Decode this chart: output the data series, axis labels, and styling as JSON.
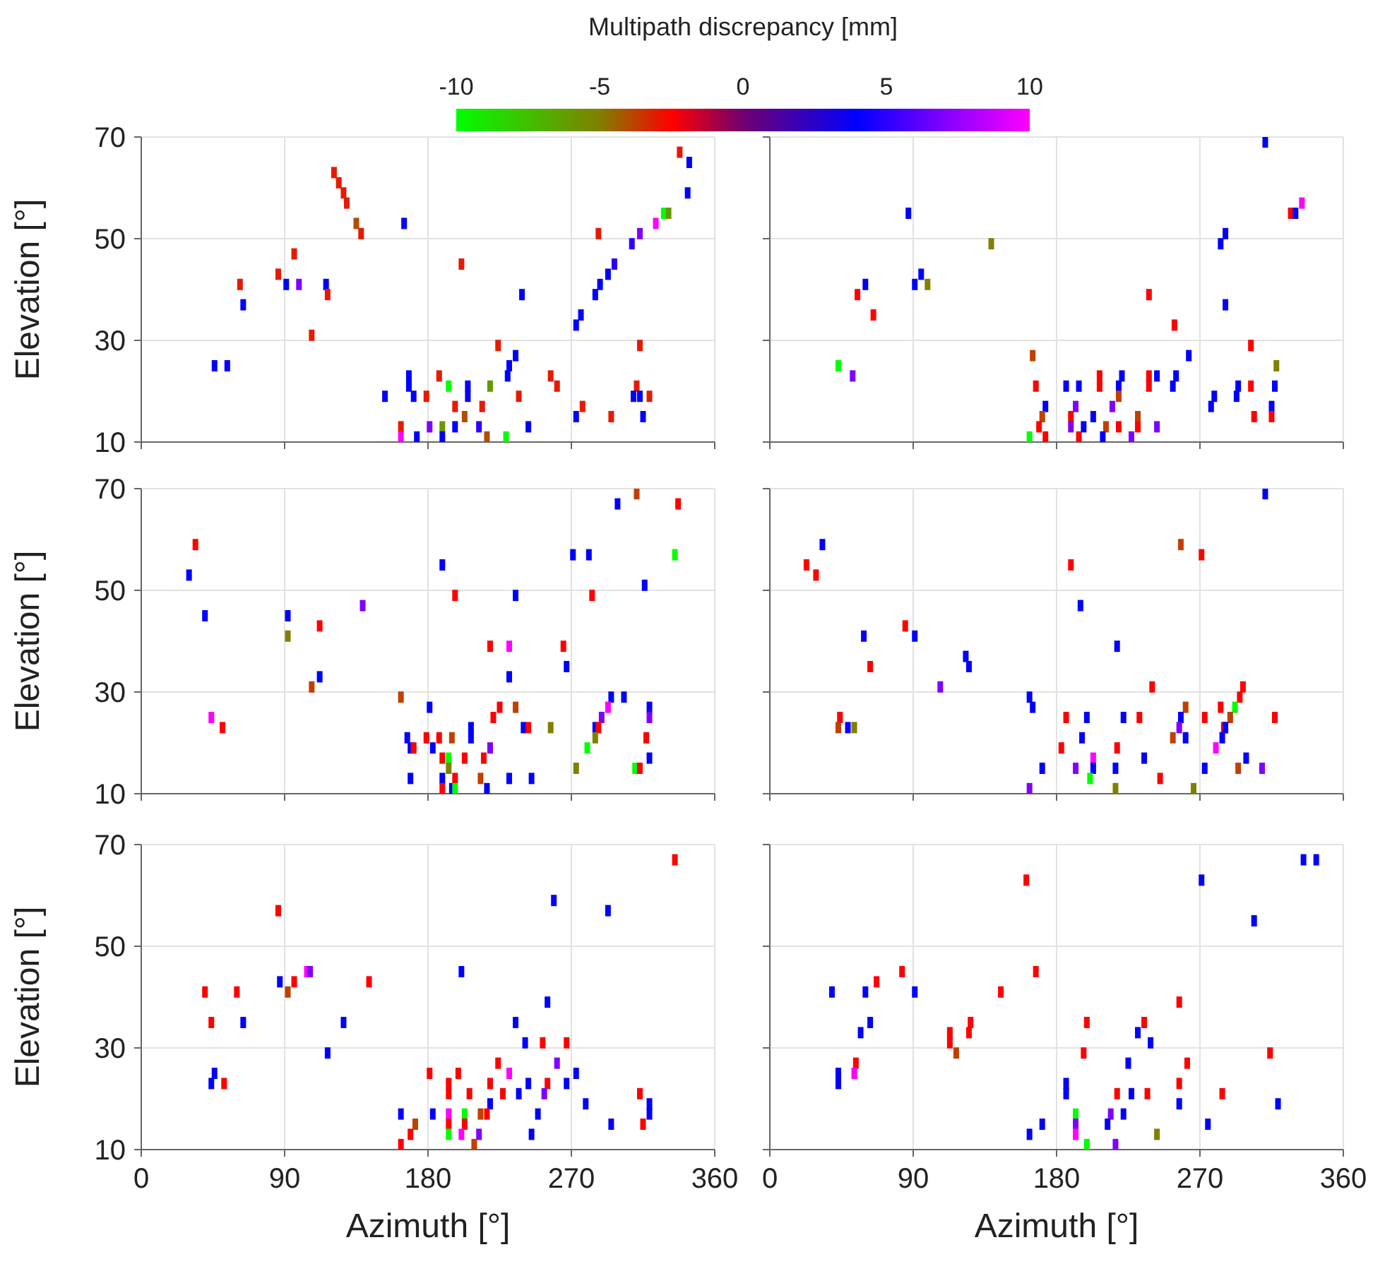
{
  "chart_data": [
    {
      "type": "scatter",
      "clabel": "Multipath discrepancy [mm]",
      "clim": [
        -10,
        10
      ],
      "cticks": [
        -10,
        -5,
        0,
        5,
        10
      ],
      "ylabel": "Elevation [°]",
      "xlim": [
        0,
        360
      ],
      "xticks": [
        0,
        90,
        180,
        270,
        360
      ],
      "ylim": [
        10,
        70
      ],
      "yticks": [
        10,
        30,
        50,
        70
      ],
      "grid": true,
      "marker": "square",
      "tick_labels": "y",
      "x": [
        338,
        344,
        343,
        328,
        331,
        323,
        313,
        287,
        308,
        297,
        293,
        288,
        285,
        276,
        273,
        313,
        224,
        235,
        231,
        230,
        257,
        261,
        311,
        309,
        313,
        319,
        277,
        273,
        295,
        315,
        168,
        168,
        187,
        193,
        205,
        205,
        219,
        153,
        171,
        179,
        237,
        197,
        214,
        203,
        163,
        163,
        173,
        181,
        189,
        189,
        197,
        212,
        217,
        229,
        243,
        121,
        124,
        127,
        129,
        135,
        138,
        165,
        96,
        86,
        62,
        91,
        99,
        116,
        117,
        64,
        107,
        201,
        239,
        46,
        54
      ],
      "values": [
        67,
        65,
        59,
        55,
        55,
        53,
        51,
        51,
        49,
        45,
        43,
        41,
        39,
        35,
        33,
        29,
        29,
        27,
        25,
        23,
        23,
        21,
        21,
        19,
        19,
        19,
        17,
        15,
        15,
        15,
        23,
        21,
        23,
        21,
        21,
        19,
        21,
        19,
        19,
        19,
        19,
        17,
        17,
        15,
        13,
        11,
        11,
        13,
        13,
        11,
        13,
        13,
        11,
        11,
        13,
        63,
        61,
        59,
        57,
        53,
        51,
        53,
        47,
        43,
        41,
        41,
        41,
        41,
        39,
        37,
        31,
        45,
        39,
        25,
        25
      ],
      "cvalues": [
        -3,
        4,
        4,
        -10,
        -6,
        10,
        7,
        -3,
        5,
        5,
        4,
        4,
        4,
        4,
        4,
        -3,
        -3,
        4,
        4,
        4,
        -3,
        -3,
        -3,
        4,
        4,
        -3,
        -3,
        4,
        -3,
        4,
        4,
        4,
        -3,
        -10,
        4,
        4,
        -6,
        4,
        4,
        -3,
        -3,
        -3,
        -3,
        -4,
        -3,
        10,
        4,
        7,
        -6,
        4,
        4,
        5,
        -4,
        -10,
        4,
        -3,
        -3,
        -3,
        -3,
        -4,
        -3,
        4,
        -3,
        -3,
        -3,
        4,
        7,
        4,
        -3,
        4,
        -3,
        -3,
        4,
        4,
        4
      ]
    },
    {
      "type": "scatter",
      "xlim": [
        0,
        360
      ],
      "xticks": [
        0,
        90,
        180,
        270,
        360
      ],
      "ylim": [
        10,
        70
      ],
      "yticks": [
        10,
        30,
        50,
        70
      ],
      "grid": true,
      "marker": "square",
      "tick_labels": false,
      "x": [
        311,
        334,
        327,
        330,
        286,
        283,
        286,
        87,
        139,
        95,
        91,
        99,
        60,
        55,
        65,
        238,
        254,
        302,
        263,
        318,
        43,
        52,
        165,
        167,
        173,
        171,
        169,
        163,
        173,
        186,
        194,
        207,
        207,
        221,
        219,
        219,
        238,
        238,
        243,
        255,
        253,
        192,
        215,
        189,
        203,
        189,
        197,
        211,
        219,
        231,
        231,
        243,
        194,
        209,
        227,
        279,
        277,
        294,
        293,
        302,
        317,
        315,
        304,
        315
      ],
      "values": [
        69,
        57,
        55,
        55,
        51,
        49,
        37,
        55,
        49,
        43,
        41,
        41,
        41,
        39,
        35,
        39,
        33,
        29,
        27,
        25,
        25,
        23,
        27,
        21,
        17,
        15,
        13,
        11,
        11,
        21,
        21,
        23,
        21,
        23,
        21,
        19,
        23,
        21,
        23,
        23,
        21,
        17,
        17,
        15,
        15,
        13,
        13,
        13,
        13,
        15,
        13,
        13,
        11,
        11,
        11,
        19,
        17,
        21,
        19,
        21,
        21,
        17,
        15,
        15
      ],
      "colors": [
        "#0000ff",
        "#ff00ff",
        "#ff0000",
        "#0000ff",
        "#0000ff",
        "#0000ff",
        "#0000ff",
        "#0000ff",
        "#808000",
        "#0000ff",
        "#0000ff",
        "#808000",
        "#0000ff",
        "#ff0000",
        "#ff0000",
        "#ff0000",
        "#ff0000",
        "#ff0000",
        "#0000ff",
        "#808000",
        "#00ff00",
        "#8000ff",
        "#c04000",
        "#ff0000",
        "#0000ff",
        "#c04000",
        "#ff0000",
        "#00ff00",
        "#ff0000",
        "#0000ff",
        "#0000ff",
        "#ff0000",
        "#ff0000",
        "#0000ff",
        "#0000ff",
        "#c04000",
        "#ff0000",
        "#ff0000",
        "#0000ff",
        "#0000ff",
        "#0000ff",
        "#8000ff",
        "#8000ff",
        "#ff0000",
        "#0000ff",
        "#8000ff",
        "#0000ff",
        "#c04000",
        "#ff0000",
        "#c04000",
        "#ff0000",
        "#8000ff",
        "#ff0000",
        "#0000ff",
        "#8000ff",
        "#0000ff",
        "#0000ff",
        "#0000ff",
        "#0000ff",
        "#ff0000",
        "#0000ff",
        "#0000ff",
        "#ff0000",
        "#ff0000"
      ]
    },
    {
      "type": "scatter",
      "ylabel": "Elevation [°]",
      "xlim": [
        0,
        360
      ],
      "xticks": [
        0,
        90,
        180,
        270,
        360
      ],
      "ylim": [
        10,
        70
      ],
      "yticks": [
        10,
        30,
        50,
        70
      ],
      "grid": true,
      "marker": "square",
      "tick_labels": "y",
      "x": [
        311,
        299,
        337,
        271,
        281,
        335,
        316,
        283,
        235,
        197,
        189,
        34,
        30,
        40,
        92,
        92,
        139,
        112,
        112,
        107,
        219,
        231,
        265,
        267,
        231,
        44,
        51,
        163,
        181,
        225,
        235,
        221,
        207,
        207,
        240,
        243,
        257,
        295,
        303,
        293,
        289,
        285,
        287,
        285,
        319,
        319,
        317,
        319,
        280,
        273,
        310,
        313,
        167,
        169,
        171,
        179,
        187,
        195,
        183,
        219,
        189,
        193,
        193,
        203,
        215,
        169,
        189,
        197,
        213,
        231,
        245,
        189,
        195,
        197,
        217
      ],
      "values": [
        69,
        67,
        67,
        57,
        57,
        57,
        51,
        49,
        49,
        49,
        55,
        59,
        53,
        45,
        45,
        41,
        47,
        43,
        33,
        31,
        39,
        39,
        39,
        35,
        33,
        25,
        23,
        29,
        27,
        27,
        27,
        25,
        23,
        21,
        23,
        23,
        23,
        29,
        29,
        27,
        25,
        23,
        23,
        21,
        27,
        25,
        21,
        17,
        19,
        15,
        15,
        15,
        21,
        19,
        19,
        21,
        21,
        21,
        19,
        19,
        17,
        17,
        15,
        17,
        17,
        13,
        13,
        13,
        13,
        13,
        13,
        11,
        11,
        11,
        11
      ],
      "colors": [
        "#c04000",
        "#0000ff",
        "#ff0000",
        "#0000ff",
        "#0000ff",
        "#00ff00",
        "#0000ff",
        "#ff0000",
        "#0000ff",
        "#ff0000",
        "#0000ff",
        "#ff0000",
        "#0000ff",
        "#0000ff",
        "#0000ff",
        "#808000",
        "#8000ff",
        "#ff0000",
        "#0000ff",
        "#c04000",
        "#ff0000",
        "#ff00ff",
        "#ff0000",
        "#0000ff",
        "#0000ff",
        "#ff00ff",
        "#ff0000",
        "#c04000",
        "#0000ff",
        "#ff0000",
        "#c04000",
        "#ff0000",
        "#0000ff",
        "#0000ff",
        "#0000ff",
        "#ff0000",
        "#808000",
        "#0000ff",
        "#0000ff",
        "#ff00ff",
        "#8000ff",
        "#0000ff",
        "#ff0000",
        "#808000",
        "#0000ff",
        "#8000ff",
        "#ff0000",
        "#0000ff",
        "#00ff00",
        "#808000",
        "#00ff00",
        "#ff0000",
        "#0000ff",
        "#0000ff",
        "#ff0000",
        "#ff0000",
        "#ff0000",
        "#c04000",
        "#0000ff",
        "#8000ff",
        "#ff0000",
        "#00ff00",
        "#808000",
        "#ff0000",
        "#ff0000",
        "#0000ff",
        "#0000ff",
        "#ff0000",
        "#c04000",
        "#0000ff",
        "#0000ff",
        "#ff0000",
        "#0000ff",
        "#00ff00",
        "#0000ff"
      ]
    },
    {
      "type": "scatter",
      "xlim": [
        0,
        360
      ],
      "xticks": [
        0,
        90,
        180,
        270,
        360
      ],
      "ylim": [
        10,
        70
      ],
      "yticks": [
        10,
        30,
        50,
        70
      ],
      "grid": true,
      "marker": "square",
      "tick_labels": false,
      "x": [
        311,
        33,
        23,
        29,
        258,
        271,
        189,
        195,
        218,
        59,
        85,
        91,
        63,
        123,
        125,
        107,
        240,
        297,
        295,
        163,
        165,
        261,
        283,
        292,
        289,
        44,
        43,
        49,
        53,
        186,
        199,
        222,
        232,
        258,
        273,
        317,
        257,
        285,
        286,
        253,
        261,
        284,
        196,
        183,
        218,
        280,
        203,
        203,
        235,
        299,
        171,
        192,
        217,
        273,
        294,
        309,
        201,
        245,
        163,
        217,
        266
      ],
      "values": [
        69,
        59,
        55,
        53,
        59,
        57,
        55,
        47,
        39,
        41,
        43,
        41,
        35,
        37,
        35,
        31,
        31,
        31,
        29,
        29,
        27,
        27,
        27,
        27,
        25,
        25,
        23,
        23,
        23,
        25,
        25,
        25,
        25,
        25,
        25,
        25,
        23,
        23,
        23,
        21,
        21,
        21,
        21,
        19,
        19,
        19,
        17,
        15,
        17,
        17,
        15,
        15,
        15,
        15,
        15,
        15,
        13,
        13,
        11,
        11,
        11
      ],
      "colors": [
        "#0000ff",
        "#0000ff",
        "#ff0000",
        "#ff0000",
        "#c04000",
        "#ff0000",
        "#ff0000",
        "#0000ff",
        "#0000ff",
        "#0000ff",
        "#ff0000",
        "#0000ff",
        "#ff0000",
        "#0000ff",
        "#0000ff",
        "#8000ff",
        "#ff0000",
        "#ff0000",
        "#ff0000",
        "#0000ff",
        "#0000ff",
        "#c04000",
        "#ff0000",
        "#00ff00",
        "#c04000",
        "#ff0000",
        "#c04000",
        "#0000ff",
        "#808000",
        "#ff0000",
        "#0000ff",
        "#0000ff",
        "#ff0000",
        "#0000ff",
        "#ff0000",
        "#ff0000",
        "#8000ff",
        "#ff0000",
        "#0000ff",
        "#c04000",
        "#0000ff",
        "#0000ff",
        "#0000ff",
        "#ff0000",
        "#ff0000",
        "#ff00ff",
        "#ff00ff",
        "#0000ff",
        "#0000ff",
        "#0000ff",
        "#0000ff",
        "#8000ff",
        "#0000ff",
        "#0000ff",
        "#c04000",
        "#8000ff",
        "#00ff00",
        "#ff0000",
        "#8000ff",
        "#808000",
        "#808000"
      ]
    },
    {
      "type": "scatter",
      "xlabel": "Azimuth [°]",
      "ylabel": "Elevation [°]",
      "xlim": [
        0,
        360
      ],
      "xticks": [
        0,
        90,
        180,
        270,
        360
      ],
      "ylim": [
        10,
        70
      ],
      "yticks": [
        10,
        30,
        50,
        70
      ],
      "grid": true,
      "marker": "square",
      "x": [
        335,
        259,
        293,
        86,
        104,
        106,
        87,
        96,
        92,
        143,
        40,
        60,
        44,
        64,
        127,
        117,
        201,
        255,
        235,
        241,
        252,
        267,
        46,
        44,
        52,
        224,
        261,
        181,
        199,
        231,
        273,
        193,
        193,
        219,
        243,
        255,
        267,
        206,
        227,
        237,
        253,
        313,
        219,
        279,
        319,
        319,
        163,
        183,
        193,
        203,
        213,
        217,
        249,
        172,
        193,
        203,
        295,
        315,
        169,
        193,
        201,
        212,
        245,
        163,
        209
      ],
      "values": [
        67,
        59,
        57,
        57,
        45,
        45,
        43,
        43,
        41,
        43,
        41,
        41,
        35,
        35,
        35,
        29,
        45,
        39,
        35,
        31,
        31,
        31,
        25,
        23,
        23,
        27,
        27,
        25,
        25,
        25,
        25,
        23,
        21,
        23,
        23,
        23,
        23,
        21,
        21,
        21,
        21,
        21,
        19,
        19,
        19,
        17,
        17,
        17,
        17,
        17,
        17,
        17,
        17,
        15,
        15,
        15,
        15,
        15,
        13,
        13,
        13,
        13,
        13,
        11,
        11
      ],
      "colors": [
        "#ff0000",
        "#0000ff",
        "#0000ff",
        "#ff0000",
        "#ff00ff",
        "#8000ff",
        "#0000ff",
        "#ff0000",
        "#c04000",
        "#ff0000",
        "#ff0000",
        "#ff0000",
        "#ff0000",
        "#0000ff",
        "#0000ff",
        "#0000ff",
        "#0000ff",
        "#0000ff",
        "#0000ff",
        "#0000ff",
        "#ff0000",
        "#ff0000",
        "#0000ff",
        "#0000ff",
        "#ff0000",
        "#ff0000",
        "#8000ff",
        "#ff0000",
        "#ff0000",
        "#ff00ff",
        "#0000ff",
        "#ff0000",
        "#ff0000",
        "#ff0000",
        "#0000ff",
        "#ff0000",
        "#0000ff",
        "#ff0000",
        "#ff0000",
        "#0000ff",
        "#8000ff",
        "#ff0000",
        "#0000ff",
        "#0000ff",
        "#0000ff",
        "#0000ff",
        "#0000ff",
        "#0000ff",
        "#ff00ff",
        "#00ff00",
        "#c04000",
        "#ff0000",
        "#0000ff",
        "#c04000",
        "#ff0000",
        "#ff0000",
        "#0000ff",
        "#ff0000",
        "#ff0000",
        "#00ff00",
        "#ff00ff",
        "#8000ff",
        "#0000ff",
        "#ff0000",
        "#c04000"
      ]
    },
    {
      "type": "scatter",
      "xlabel": "Azimuth [°]",
      "xlim": [
        0,
        360
      ],
      "xticks": [
        0,
        90,
        180,
        270,
        360
      ],
      "ylim": [
        10,
        70
      ],
      "yticks": [
        10,
        30,
        50,
        70
      ],
      "grid": true,
      "marker": "square",
      "tick_labels": "x",
      "x": [
        335,
        343,
        161,
        271,
        304,
        83,
        167,
        67,
        39,
        60,
        91,
        145,
        257,
        63,
        57,
        126,
        125,
        113,
        113,
        117,
        199,
        235,
        231,
        239,
        197,
        314,
        54,
        53,
        43,
        43,
        225,
        262,
        186,
        186,
        257,
        218,
        227,
        237,
        284,
        257,
        319,
        192,
        214,
        222,
        171,
        192,
        192,
        212,
        275,
        163,
        243,
        199,
        217
      ],
      "values": [
        67,
        67,
        63,
        63,
        55,
        45,
        45,
        43,
        41,
        41,
        41,
        41,
        39,
        35,
        33,
        35,
        33,
        33,
        31,
        29,
        35,
        35,
        33,
        31,
        29,
        29,
        27,
        25,
        25,
        23,
        27,
        27,
        23,
        21,
        23,
        21,
        21,
        21,
        21,
        19,
        19,
        17,
        17,
        17,
        15,
        15,
        13,
        15,
        15,
        13,
        13,
        11,
        11
      ],
      "colors": [
        "#0000ff",
        "#0000ff",
        "#ff0000",
        "#0000ff",
        "#0000ff",
        "#ff0000",
        "#ff0000",
        "#ff0000",
        "#0000ff",
        "#0000ff",
        "#0000ff",
        "#ff0000",
        "#ff0000",
        "#0000ff",
        "#0000ff",
        "#ff0000",
        "#ff0000",
        "#ff0000",
        "#ff0000",
        "#c04000",
        "#ff0000",
        "#ff0000",
        "#0000ff",
        "#0000ff",
        "#ff0000",
        "#ff0000",
        "#ff0000",
        "#ff00ff",
        "#0000ff",
        "#0000ff",
        "#0000ff",
        "#ff0000",
        "#0000ff",
        "#0000ff",
        "#ff0000",
        "#ff0000",
        "#0000ff",
        "#ff0000",
        "#ff0000",
        "#0000ff",
        "#0000ff",
        "#00ff00",
        "#8000ff",
        "#0000ff",
        "#0000ff",
        "#8000ff",
        "#ff00ff",
        "#0000ff",
        "#0000ff",
        "#0000ff",
        "#808000",
        "#00ff00",
        "#8000ff"
      ]
    }
  ]
}
